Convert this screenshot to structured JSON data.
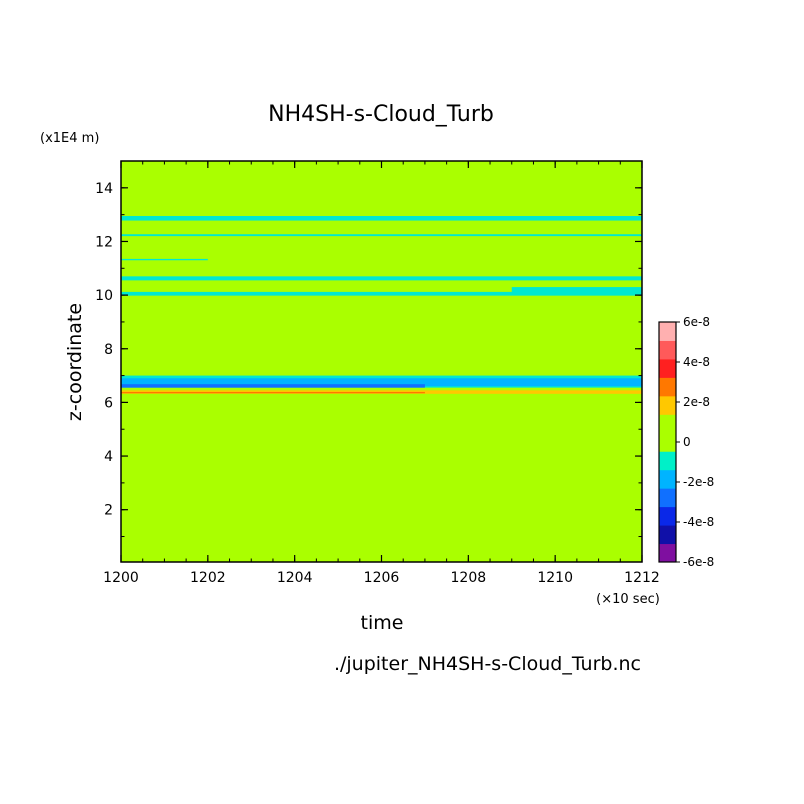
{
  "chart_data": {
    "type": "heatmap",
    "title": "NH4SH-s-Cloud_Turb",
    "xlabel": "time",
    "ylabel": "z-coordinate",
    "x_unit": "(×10 sec)",
    "y_unit": "(x1E4 m)",
    "footer": "./jupiter_NH4SH-s-Cloud_Turb.nc",
    "xlim": [
      1200,
      1212
    ],
    "ylim": [
      0.05,
      15
    ],
    "x_ticks": [
      "1200",
      "1202",
      "1204",
      "1206",
      "1208",
      "1210",
      "1212"
    ],
    "y_ticks": [
      "2",
      "4",
      "6",
      "8",
      "10",
      "12",
      "14"
    ],
    "colorbar": {
      "labels": [
        "6e-8",
        "4e-8",
        "2e-8",
        "0",
        "-2e-8",
        "-4e-8",
        "-6e-8"
      ],
      "values": [
        6e-08,
        4e-08,
        2e-08,
        0,
        -2e-08,
        -4e-08,
        -6e-08
      ],
      "level_colors": [
        "#7f0fa0",
        "#1010a8",
        "#0a28e8",
        "#1070ff",
        "#00b4ff",
        "#00f0c8",
        "#aaff00",
        "#aaff00",
        "#ffc800",
        "#ff7800",
        "#ff2020",
        "#ff5a5a",
        "#ffb0b0"
      ]
    },
    "background_color": "#aaff00",
    "bands": [
      {
        "x0": 1200,
        "x1": 1212,
        "y0": 12.78,
        "y1": 12.95,
        "color": "#00e8d0"
      },
      {
        "x0": 1200,
        "x1": 1212,
        "y0": 12.2,
        "y1": 12.27,
        "color": "#00e8d0"
      },
      {
        "x0": 1200,
        "x1": 1202,
        "y0": 11.3,
        "y1": 11.35,
        "color": "#00e8d0"
      },
      {
        "x0": 1200,
        "x1": 1212,
        "y0": 10.55,
        "y1": 10.7,
        "color": "#00e8d0"
      },
      {
        "x0": 1200,
        "x1": 1212,
        "y0": 9.98,
        "y1": 10.12,
        "color": "#00e8d0"
      },
      {
        "x0": 1209,
        "x1": 1212,
        "y0": 10.05,
        "y1": 10.3,
        "color": "#00e8d0"
      },
      {
        "x0": 1200,
        "x1": 1212,
        "y0": 6.55,
        "y1": 7.0,
        "color": "#00e8d0"
      },
      {
        "x0": 1200,
        "x1": 1212,
        "y0": 6.6,
        "y1": 6.9,
        "color": "#00b4ff"
      },
      {
        "x0": 1200,
        "x1": 1207,
        "y0": 6.55,
        "y1": 6.68,
        "color": "#1070ff"
      },
      {
        "x0": 1200,
        "x1": 1212,
        "y0": 6.32,
        "y1": 6.45,
        "color": "#ffc800"
      },
      {
        "x0": 1200,
        "x1": 1207,
        "y0": 6.34,
        "y1": 6.39,
        "color": "#ff7800"
      }
    ],
    "grid": false,
    "legend": "right"
  }
}
